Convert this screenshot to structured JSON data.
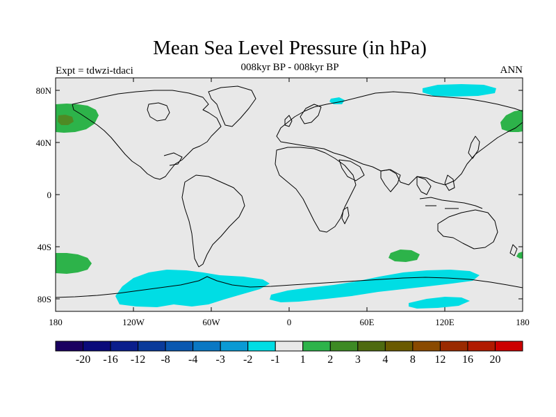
{
  "title": "Mean Sea Level Pressure (in hPa)",
  "subtitle": "008kyr BP - 008kyr BP",
  "left_label": "Expt = tdwzi-tdaci",
  "right_label": "ANN",
  "colors": {
    "background": "#e8e8e8",
    "coastline": "#000000",
    "positive_anomaly": "#2db34a",
    "positive_strong": "#4e8a24",
    "negative_anomaly": "#00dde4"
  },
  "axes": {
    "lat_labels": [
      "80N",
      "40N",
      "0",
      "40S",
      "80S"
    ],
    "lon_labels": [
      "180",
      "120W",
      "60W",
      "0",
      "60E",
      "120E",
      "180"
    ]
  },
  "colorbar": {
    "colors": [
      "#1a0060",
      "#0a0a7a",
      "#0a1e8c",
      "#0a3a9a",
      "#0a58b0",
      "#0a78c4",
      "#0a9ad4",
      "#00dde4",
      "#e8e8e8",
      "#2db34a",
      "#3d8a24",
      "#4e6a10",
      "#6a5a00",
      "#8a4a00",
      "#9a2a00",
      "#b01a00",
      "#cc0000"
    ],
    "labels": [
      "-20",
      "-16",
      "-12",
      "-8",
      "-4",
      "-3",
      "-2",
      "-1",
      "1",
      "2",
      "3",
      "4",
      "8",
      "12",
      "16",
      "20"
    ]
  }
}
